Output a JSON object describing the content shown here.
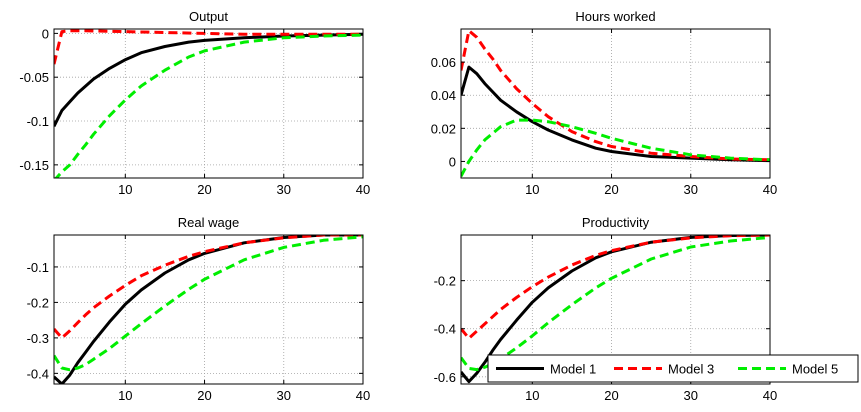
{
  "chart_data": [
    {
      "type": "line",
      "title": "Output",
      "xlim": [
        1,
        40
      ],
      "ylim": [
        -0.165,
        0.005
      ],
      "xticks": [
        10,
        20,
        30,
        40
      ],
      "yticks": [
        0,
        -0.05,
        -0.1,
        -0.15
      ],
      "ytick_labels": [
        "0",
        "-0.05",
        "-0.1",
        "-0.15"
      ],
      "grid": true,
      "series": [
        {
          "name": "Model 1",
          "color": "#000000",
          "style": "solid",
          "x": [
            1,
            2,
            3,
            4,
            5,
            6,
            8,
            10,
            12,
            15,
            18,
            20,
            25,
            30,
            35,
            40
          ],
          "y": [
            -0.106,
            -0.088,
            -0.078,
            -0.068,
            -0.06,
            -0.052,
            -0.04,
            -0.03,
            -0.022,
            -0.015,
            -0.01,
            -0.008,
            -0.005,
            -0.003,
            -0.002,
            -0.001
          ]
        },
        {
          "name": "Model 3",
          "color": "#ff0000",
          "style": "dashed",
          "x": [
            1,
            2,
            3,
            5,
            10,
            15,
            20,
            25,
            30,
            35,
            40
          ],
          "y": [
            -0.035,
            0.002,
            0.003,
            0.003,
            0.002,
            0.001,
            0.0,
            -0.001,
            -0.001,
            -0.001,
            -0.001
          ]
        },
        {
          "name": "Model 5",
          "color": "#00ee00",
          "style": "dashed",
          "x": [
            1,
            2,
            3,
            4,
            5,
            6,
            8,
            10,
            12,
            15,
            18,
            20,
            25,
            30,
            35,
            40
          ],
          "y": [
            -0.168,
            -0.158,
            -0.15,
            -0.138,
            -0.127,
            -0.115,
            -0.094,
            -0.076,
            -0.06,
            -0.042,
            -0.027,
            -0.02,
            -0.01,
            -0.005,
            -0.003,
            -0.002
          ]
        }
      ]
    },
    {
      "type": "line",
      "title": "Hours worked",
      "xlim": [
        1,
        40
      ],
      "ylim": [
        -0.01,
        0.08
      ],
      "xticks": [
        10,
        20,
        30,
        40
      ],
      "yticks": [
        0,
        0.02,
        0.04,
        0.06
      ],
      "ytick_labels": [
        "0",
        "0.02",
        "0.04",
        "0.06"
      ],
      "grid": true,
      "series": [
        {
          "name": "Model 1",
          "color": "#000000",
          "style": "solid",
          "x": [
            1,
            2,
            3,
            4,
            5,
            6,
            8,
            10,
            12,
            15,
            18,
            20,
            25,
            30,
            35,
            40
          ],
          "y": [
            0.04,
            0.057,
            0.053,
            0.047,
            0.042,
            0.037,
            0.03,
            0.024,
            0.019,
            0.013,
            0.008,
            0.006,
            0.003,
            0.002,
            0.001,
            0.0005
          ]
        },
        {
          "name": "Model 3",
          "color": "#ff0000",
          "style": "dashed",
          "x": [
            1,
            2,
            3,
            4,
            5,
            6,
            8,
            10,
            12,
            15,
            18,
            20,
            25,
            30,
            35,
            40
          ],
          "y": [
            0.055,
            0.079,
            0.075,
            0.068,
            0.062,
            0.055,
            0.044,
            0.035,
            0.027,
            0.018,
            0.012,
            0.009,
            0.005,
            0.003,
            0.0015,
            0.001
          ]
        },
        {
          "name": "Model 5",
          "color": "#00ee00",
          "style": "dashed",
          "x": [
            1,
            2,
            3,
            4,
            5,
            6,
            8,
            10,
            12,
            15,
            18,
            20,
            25,
            30,
            35,
            40
          ],
          "y": [
            -0.009,
            0.0,
            0.007,
            0.013,
            0.017,
            0.021,
            0.025,
            0.025,
            0.024,
            0.021,
            0.017,
            0.014,
            0.008,
            0.004,
            0.002,
            0.001
          ]
        }
      ]
    },
    {
      "type": "line",
      "title": "Real wage",
      "xlim": [
        1,
        40
      ],
      "ylim": [
        -0.43,
        -0.01
      ],
      "xticks": [
        10,
        20,
        30,
        40
      ],
      "yticks": [
        -0.1,
        -0.2,
        -0.3,
        -0.4
      ],
      "ytick_labels": [
        "-0.1",
        "-0.2",
        "-0.3",
        "-0.4"
      ],
      "grid": true,
      "series": [
        {
          "name": "Model 1",
          "color": "#000000",
          "style": "solid",
          "x": [
            1,
            2,
            3,
            4,
            5,
            6,
            8,
            10,
            12,
            15,
            18,
            20,
            25,
            30,
            35,
            40
          ],
          "y": [
            -0.41,
            -0.43,
            -0.405,
            -0.37,
            -0.34,
            -0.31,
            -0.255,
            -0.205,
            -0.165,
            -0.117,
            -0.08,
            -0.062,
            -0.032,
            -0.017,
            -0.01,
            -0.01
          ]
        },
        {
          "name": "Model 3",
          "color": "#ff0000",
          "style": "dashed",
          "x": [
            1,
            2,
            3,
            4,
            5,
            6,
            8,
            10,
            12,
            15,
            18,
            20,
            25,
            30,
            35,
            40
          ],
          "y": [
            -0.275,
            -0.3,
            -0.28,
            -0.257,
            -0.235,
            -0.215,
            -0.182,
            -0.152,
            -0.125,
            -0.095,
            -0.07,
            -0.057,
            -0.032,
            -0.018,
            -0.01,
            -0.01
          ]
        },
        {
          "name": "Model 5",
          "color": "#00ee00",
          "style": "dashed",
          "x": [
            1,
            2,
            3,
            4,
            5,
            6,
            8,
            10,
            12,
            15,
            18,
            20,
            25,
            30,
            35,
            40
          ],
          "y": [
            -0.35,
            -0.385,
            -0.39,
            -0.385,
            -0.375,
            -0.36,
            -0.33,
            -0.295,
            -0.26,
            -0.21,
            -0.163,
            -0.135,
            -0.08,
            -0.045,
            -0.025,
            -0.015
          ]
        }
      ]
    },
    {
      "type": "line",
      "title": "Productivity",
      "xlim": [
        1,
        40
      ],
      "ylim": [
        -0.63,
        -0.01
      ],
      "xticks": [
        10,
        20,
        30,
        40
      ],
      "yticks": [
        -0.2,
        -0.4,
        -0.6
      ],
      "ytick_labels": [
        "-0.2",
        "-0.4",
        "-0.6"
      ],
      "grid": true,
      "legend_position": "bottom-right",
      "series": [
        {
          "name": "Model 1",
          "color": "#000000",
          "style": "solid",
          "x": [
            1,
            2,
            3,
            4,
            5,
            6,
            8,
            10,
            12,
            15,
            18,
            20,
            25,
            30,
            35,
            40
          ],
          "y": [
            -0.58,
            -0.62,
            -0.585,
            -0.54,
            -0.49,
            -0.445,
            -0.365,
            -0.29,
            -0.23,
            -0.16,
            -0.105,
            -0.08,
            -0.04,
            -0.02,
            -0.012,
            -0.01
          ]
        },
        {
          "name": "Model 3",
          "color": "#ff0000",
          "style": "dashed",
          "x": [
            1,
            2,
            3,
            4,
            5,
            6,
            8,
            10,
            12,
            15,
            18,
            20,
            25,
            30,
            35,
            40
          ],
          "y": [
            -0.4,
            -0.44,
            -0.41,
            -0.38,
            -0.35,
            -0.32,
            -0.27,
            -0.225,
            -0.185,
            -0.135,
            -0.095,
            -0.075,
            -0.04,
            -0.022,
            -0.013,
            -0.01
          ]
        },
        {
          "name": "Model 5",
          "color": "#00ee00",
          "style": "dashed",
          "x": [
            1,
            2,
            3,
            4,
            5,
            6,
            8,
            10,
            12,
            15,
            18,
            20,
            25,
            30,
            35,
            40
          ],
          "y": [
            -0.52,
            -0.565,
            -0.57,
            -0.56,
            -0.545,
            -0.525,
            -0.48,
            -0.43,
            -0.375,
            -0.3,
            -0.23,
            -0.19,
            -0.11,
            -0.06,
            -0.035,
            -0.02
          ]
        }
      ]
    }
  ],
  "legend": {
    "entries": [
      {
        "label": "Model 1",
        "color": "#000000",
        "style": "solid"
      },
      {
        "label": "Model 3",
        "color": "#ff0000",
        "style": "dashed"
      },
      {
        "label": "Model 5",
        "color": "#00ee00",
        "style": "dashed"
      }
    ]
  }
}
